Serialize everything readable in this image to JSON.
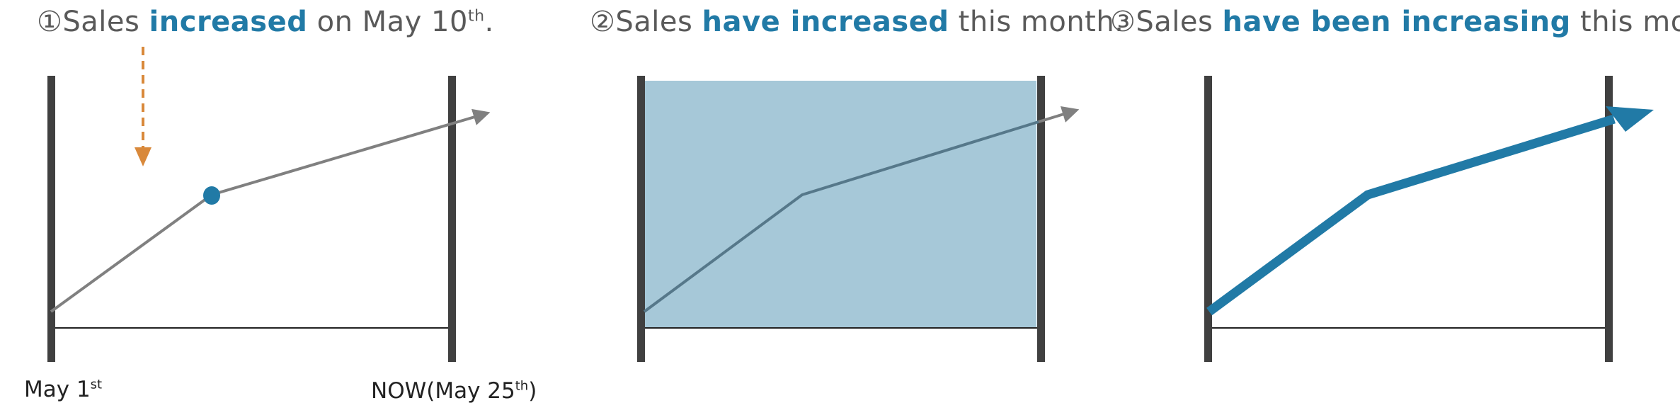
{
  "panels": [
    {
      "number": "①",
      "before": "Sales ",
      "emphasis": "increased",
      "after": " on May 10",
      "suffix_sup": "th",
      "end": "."
    },
    {
      "number": "②",
      "before": "Sales ",
      "emphasis": "have increased",
      "after": " this month.",
      "suffix_sup": "",
      "end": ""
    },
    {
      "number": "③",
      "before": "Sales ",
      "emphasis": "have been increasing",
      "after": " this month.",
      "suffix_sup": "",
      "end": ""
    }
  ],
  "timeline": {
    "start_main": "May 1",
    "start_sup": "st",
    "end_main": "NOW(May 25",
    "end_sup": "th",
    "end_close": ")"
  },
  "colors": {
    "accent": "#217aa6",
    "marker": "#d9893b",
    "line_gray": "#808080",
    "fill_blue": "#a6c8d8",
    "bar": "#404040"
  }
}
